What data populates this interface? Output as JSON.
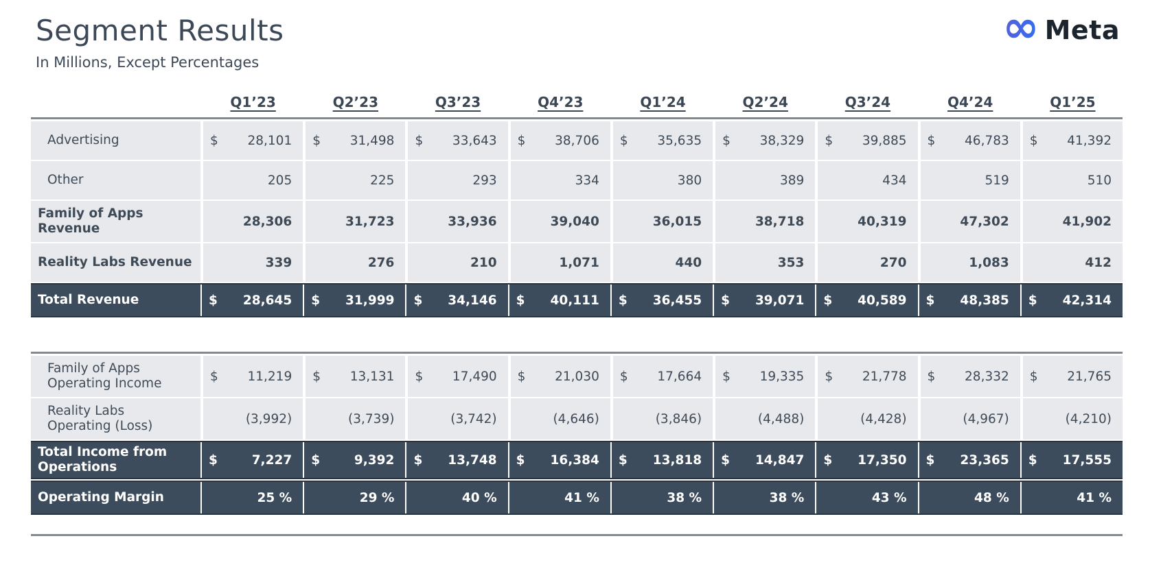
{
  "header": {
    "title": "Segment Results",
    "subtitle": "In Millions, Except Percentages",
    "logo_text": "Meta",
    "logo_icon": "meta-infinity"
  },
  "colors": {
    "dark_text": "#3d4857",
    "row_light_bg": "#e8e9ed",
    "row_dark_bg": "#3d4c5c",
    "rule_gray": "#7f8893",
    "meta_blue": "#0668E1"
  },
  "currency_symbol": "$",
  "quarters": [
    "Q1’23",
    "Q2’23",
    "Q3’23",
    "Q4’23",
    "Q1’24",
    "Q2’24",
    "Q3’24",
    "Q4’24",
    "Q1’25"
  ],
  "tables": [
    {
      "rows": [
        {
          "label": "Advertising",
          "indent": true,
          "dollar": true,
          "bold": false,
          "dark": false,
          "values": [
            "28,101",
            "31,498",
            "33,643",
            "38,706",
            "35,635",
            "38,329",
            "39,885",
            "46,783",
            "41,392"
          ]
        },
        {
          "label": "Other",
          "indent": true,
          "dollar": false,
          "bold": false,
          "dark": false,
          "values": [
            "205",
            "225",
            "293",
            "334",
            "380",
            "389",
            "434",
            "519",
            "510"
          ]
        },
        {
          "label": "Family of Apps\nRevenue",
          "indent": false,
          "dollar": false,
          "bold": true,
          "dark": false,
          "values": [
            "28,306",
            "31,723",
            "33,936",
            "39,040",
            "36,015",
            "38,718",
            "40,319",
            "47,302",
            "41,902"
          ]
        },
        {
          "label": "Reality Labs Revenue",
          "indent": false,
          "dollar": false,
          "bold": true,
          "dark": false,
          "values": [
            "339",
            "276",
            "210",
            "1,071",
            "440",
            "353",
            "270",
            "1,083",
            "412"
          ]
        },
        {
          "label": "Total Revenue",
          "indent": false,
          "dollar": true,
          "bold": true,
          "dark": true,
          "values": [
            "28,645",
            "31,999",
            "34,146",
            "40,111",
            "36,455",
            "39,071",
            "40,589",
            "48,385",
            "42,314"
          ]
        }
      ]
    },
    {
      "rows": [
        {
          "label": "Family of Apps\nOperating Income",
          "indent": true,
          "dollar": true,
          "bold": false,
          "dark": false,
          "values": [
            "11,219",
            "13,131",
            "17,490",
            "21,030",
            "17,664",
            "19,335",
            "21,778",
            "28,332",
            "21,765"
          ]
        },
        {
          "label": "Reality Labs\nOperating (Loss)",
          "indent": true,
          "dollar": false,
          "bold": false,
          "dark": false,
          "values": [
            "(3,992)",
            "(3,739)",
            "(3,742)",
            "(4,646)",
            "(3,846)",
            "(4,488)",
            "(4,428)",
            "(4,967)",
            "(4,210)"
          ]
        },
        {
          "label": "Total Income from\nOperations",
          "indent": false,
          "dollar": true,
          "bold": true,
          "dark": true,
          "values": [
            "7,227",
            "9,392",
            "13,748",
            "16,384",
            "13,818",
            "14,847",
            "17,350",
            "23,365",
            "17,555"
          ]
        },
        {
          "label": "Operating Margin",
          "indent": false,
          "dollar": false,
          "bold": true,
          "dark": true,
          "values": [
            "25 %",
            "29 %",
            "40 %",
            "41 %",
            "38 %",
            "38 %",
            "43 %",
            "48 %",
            "41 %"
          ]
        }
      ]
    }
  ],
  "chart_data": {
    "type": "table",
    "title": "Segment Results",
    "subtitle": "In Millions, Except Percentages",
    "columns": [
      "Q1'23",
      "Q2'23",
      "Q3'23",
      "Q4'23",
      "Q1'24",
      "Q2'24",
      "Q3'24",
      "Q4'24",
      "Q1'25"
    ],
    "rows": [
      {
        "label": "Advertising",
        "unit": "USD millions",
        "values": [
          28101,
          31498,
          33643,
          38706,
          35635,
          38329,
          39885,
          46783,
          41392
        ]
      },
      {
        "label": "Other",
        "unit": "USD millions",
        "values": [
          205,
          225,
          293,
          334,
          380,
          389,
          434,
          519,
          510
        ]
      },
      {
        "label": "Family of Apps Revenue",
        "unit": "USD millions",
        "values": [
          28306,
          31723,
          33936,
          39040,
          36015,
          38718,
          40319,
          47302,
          41902
        ]
      },
      {
        "label": "Reality Labs Revenue",
        "unit": "USD millions",
        "values": [
          339,
          276,
          210,
          1071,
          440,
          353,
          270,
          1083,
          412
        ]
      },
      {
        "label": "Total Revenue",
        "unit": "USD millions",
        "values": [
          28645,
          31999,
          34146,
          40111,
          36455,
          39071,
          40589,
          48385,
          42314
        ]
      },
      {
        "label": "Family of Apps Operating Income",
        "unit": "USD millions",
        "values": [
          11219,
          13131,
          17490,
          21030,
          17664,
          19335,
          21778,
          28332,
          21765
        ]
      },
      {
        "label": "Reality Labs Operating (Loss)",
        "unit": "USD millions",
        "values": [
          -3992,
          -3739,
          -3742,
          -4646,
          -3846,
          -4488,
          -4428,
          -4967,
          -4210
        ]
      },
      {
        "label": "Total Income from Operations",
        "unit": "USD millions",
        "values": [
          7227,
          9392,
          13748,
          16384,
          13818,
          14847,
          17350,
          23365,
          17555
        ]
      },
      {
        "label": "Operating Margin",
        "unit": "percent",
        "values": [
          25,
          29,
          40,
          41,
          38,
          38,
          43,
          48,
          41
        ]
      }
    ]
  }
}
